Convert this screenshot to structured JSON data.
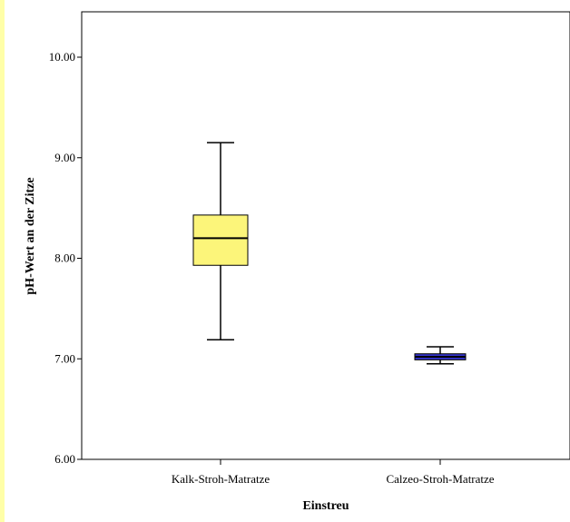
{
  "chart_data": {
    "type": "boxplot",
    "xlabel": "Einstreu",
    "ylabel": "pH-Wert an der Zitze",
    "ylim": [
      6.0,
      10.4
    ],
    "yticks": [
      "6.00",
      "7.00",
      "8.00",
      "9.00",
      "10.00"
    ],
    "categories": [
      "Kalk-Stroh-Matratze",
      "Calzeo-Stroh-Matratze"
    ],
    "boxes": [
      {
        "category": "Kalk-Stroh-Matratze",
        "min": 7.19,
        "q1": 7.93,
        "median": 8.2,
        "q3": 8.43,
        "max": 9.15,
        "color": "#fcf57a"
      },
      {
        "category": "Calzeo-Stroh-Matratze",
        "min": 6.95,
        "q1": 6.99,
        "median": 7.02,
        "q3": 7.05,
        "max": 7.12,
        "color": "#3333cc"
      }
    ],
    "grid": false
  },
  "colors": {
    "page_background": "#ffffa8",
    "plot_background": "#ffffff"
  }
}
